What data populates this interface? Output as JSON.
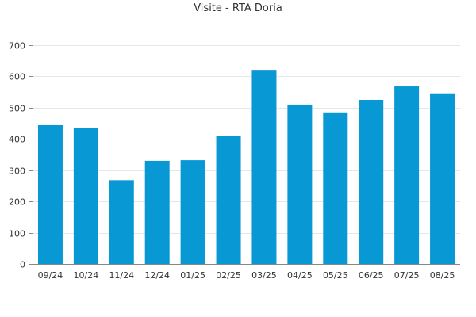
{
  "chart_data": {
    "type": "bar",
    "title": "Visite - RTA Doria",
    "xlabel": "",
    "ylabel": "",
    "categories": [
      "09/24",
      "10/24",
      "11/24",
      "12/24",
      "01/25",
      "02/25",
      "03/25",
      "04/25",
      "05/25",
      "06/25",
      "07/25",
      "08/25"
    ],
    "values": [
      444,
      434,
      268,
      330,
      332,
      409,
      621,
      510,
      485,
      525,
      568,
      546
    ],
    "ylim": [
      0,
      700
    ],
    "yticks": [
      0,
      100,
      200,
      300,
      400,
      500,
      600,
      700
    ],
    "grid": true,
    "legend": "none",
    "colors": {
      "bar": "#0899d5",
      "grid": "#e6e6e6",
      "axis": "#888888"
    }
  }
}
